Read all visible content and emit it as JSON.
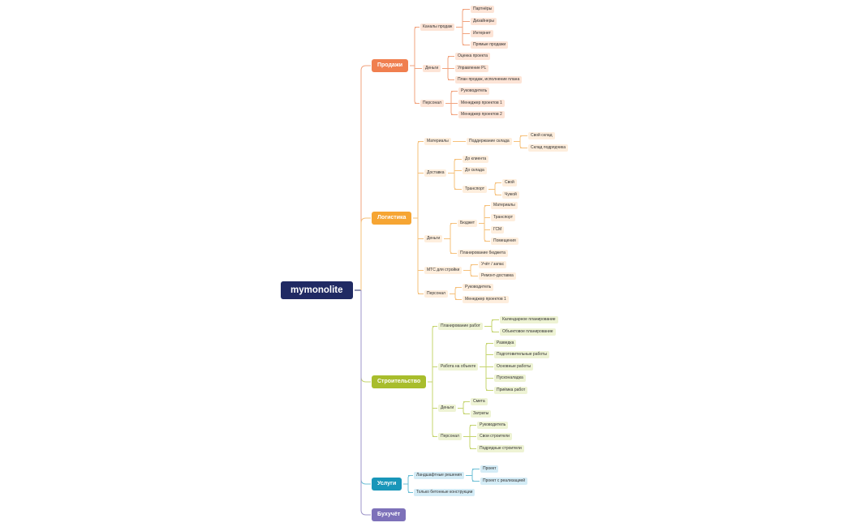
{
  "root": "mymonolite",
  "branches": {
    "sales": {
      "label": "Продажи",
      "channels": {
        "label": "Каналы продаж",
        "items": [
          "Партнёры",
          "Дизайнеры",
          "Интернет",
          "Прямые продажи"
        ]
      },
      "money": {
        "label": "Деньги",
        "items": [
          "Оценка проекта",
          "Управление PL",
          "План продаж, исполнение плана"
        ]
      },
      "staff": {
        "label": "Персонал",
        "items": [
          "Руководитель",
          "Менеджер проектов 1",
          "Менеджер проектов 2"
        ]
      }
    },
    "logistics": {
      "label": "Логистика",
      "materials": {
        "label": "Материалы",
        "stock": {
          "label": "Поддержание склада",
          "items": [
            "Свой склад",
            "Склад подрядчика"
          ]
        }
      },
      "delivery": {
        "label": "Доставка",
        "items": [
          "До клиента",
          "До склада"
        ],
        "transport": {
          "label": "Транспорт",
          "items": [
            "Свой",
            "Чужой"
          ]
        }
      },
      "money": {
        "label": "Деньги",
        "budget": {
          "label": "Бюджет",
          "items": [
            "Материалы",
            "Транспорт",
            "ГСМ",
            "Помещения"
          ]
        },
        "planning": "Планирование бюджета"
      },
      "mts": {
        "label": "МТС для стройки",
        "items": [
          "Учёт / запас",
          "Ремонт-доставка"
        ]
      },
      "staff": {
        "label": "Персонал",
        "items": [
          "Руководитель",
          "Менеджер проектов 1"
        ]
      }
    },
    "construction": {
      "label": "Строительство",
      "planning": {
        "label": "Планирование работ",
        "items": [
          "Календарное планирование",
          "Объектовое планирование"
        ]
      },
      "site": {
        "label": "Работа на объекте",
        "items": [
          "Разведка",
          "Подготовительные работы",
          "Основные работы",
          "Пусконаладка",
          "Приёмка работ"
        ]
      },
      "money": {
        "label": "Деньги",
        "items": [
          "Смета",
          "Затраты"
        ]
      },
      "staff": {
        "label": "Персонал",
        "items": [
          "Руководитель",
          "Свои строители",
          "Подрядные строители"
        ]
      }
    },
    "services": {
      "label": "Услуги",
      "landscape": {
        "label": "Ландшафтные решения",
        "items": [
          "Проект",
          "Проект с реализацией"
        ]
      },
      "concrete": "Только бетонные конструкции"
    },
    "accounting": {
      "label": "Бухучёт"
    }
  },
  "colors": {
    "root": "#202a63",
    "sales": "#f07f4f",
    "sales_leaf": "#fde4d6",
    "sales_line": "#f2a37e",
    "logistics": "#f6a533",
    "logistics_leaf": "#feeedd",
    "logistics_line": "#f6c07a",
    "construction": "#a8bd2c",
    "construction_leaf": "#eef3d4",
    "construction_line": "#c5d46e",
    "services": "#1996b9",
    "services_leaf": "#d4ecf6",
    "services_line": "#6cbfd6",
    "accounting": "#7d71b9",
    "accounting_line": "#9d94c8"
  }
}
